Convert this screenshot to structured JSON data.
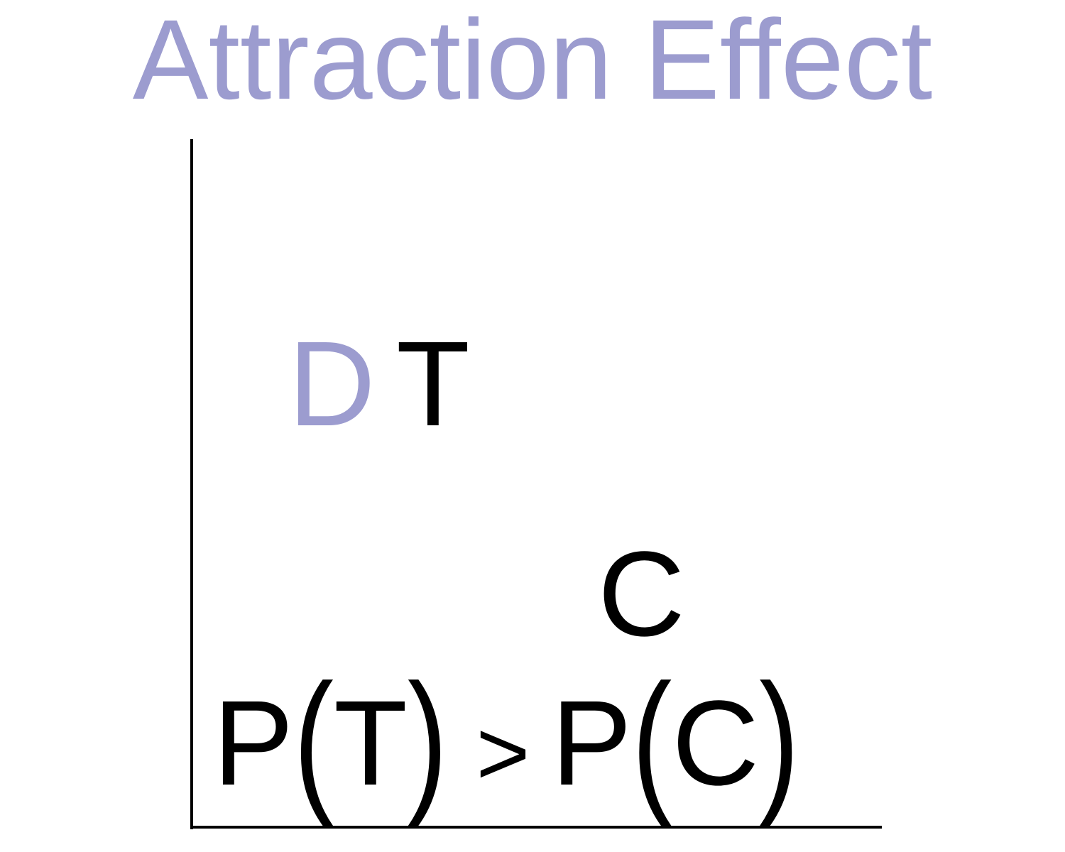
{
  "slide": {
    "title": "Attraction Effect",
    "title_color": "#9c9ccf"
  },
  "diagram": {
    "options": [
      {
        "label": "D",
        "color": "#9c9ccf"
      },
      {
        "label": "T",
        "color": "#000000"
      },
      {
        "label": "C",
        "color": "#000000"
      }
    ],
    "formula": {
      "lhs_fn": "P",
      "lhs_arg": "T",
      "operator": ">",
      "rhs_fn": "P",
      "rhs_arg": "C"
    }
  }
}
